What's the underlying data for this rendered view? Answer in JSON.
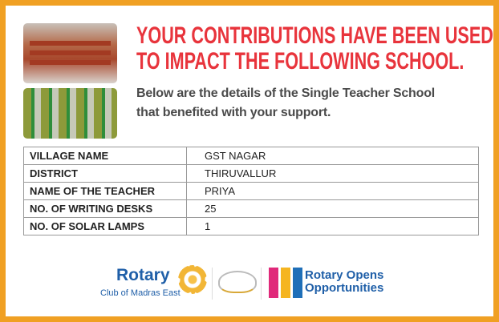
{
  "header": {
    "title_line1": "YOUR CONTRIBUTIONS HAVE BEEN USED",
    "title_line2": "TO IMPACT THE FOLLOWING SCHOOL.",
    "subtitle_line1": "Below are the details of the Single Teacher School",
    "subtitle_line2": "that benefited with your support."
  },
  "details": [
    {
      "label": "VILLAGE NAME",
      "value": "GST NAGAR"
    },
    {
      "label": "DISTRICT",
      "value": "THIRUVALLUR"
    },
    {
      "label": "NAME OF THE TEACHER",
      "value": "PRIYA"
    },
    {
      "label": "NO. OF WRITING DESKS",
      "value": "25"
    },
    {
      "label": "NO. OF SOLAR LAMPS",
      "value": "1"
    }
  ],
  "footer": {
    "rotary": "Rotary",
    "club": "Club of Madras East",
    "roo_line1": "Rotary Opens",
    "roo_line2": "Opportunities"
  },
  "colors": {
    "border": "#f0a023",
    "title": "#e8343c",
    "rotary_blue": "#1f5fa8"
  }
}
